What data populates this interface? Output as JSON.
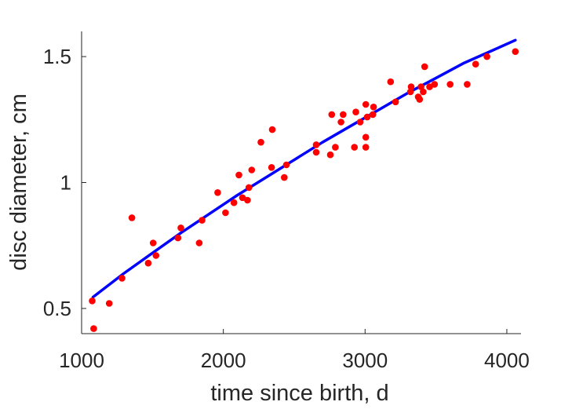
{
  "chart_data": {
    "type": "scatter",
    "xlabel": "time since birth, d",
    "ylabel": "disc diameter, cm",
    "xlim": [
      1000,
      4100
    ],
    "ylim": [
      0.4,
      1.6
    ],
    "xticks": [
      1000,
      2000,
      3000,
      4000
    ],
    "xtick_labels": [
      "1000",
      "2000",
      "3000",
      "4000"
    ],
    "yticks": [
      0.5,
      1,
      1.5
    ],
    "ytick_labels": [
      "0.5",
      "1",
      "1.5"
    ],
    "grid": false,
    "legend": "none",
    "series": [
      {
        "kind": "points",
        "color": "#ff0000",
        "points": [
          [
            1075,
            0.53
          ],
          [
            1085,
            0.42
          ],
          [
            1195,
            0.52
          ],
          [
            1285,
            0.62
          ],
          [
            1355,
            0.86
          ],
          [
            1470,
            0.68
          ],
          [
            1505,
            0.76
          ],
          [
            1525,
            0.71
          ],
          [
            1680,
            0.78
          ],
          [
            1700,
            0.82
          ],
          [
            1830,
            0.76
          ],
          [
            1850,
            0.85
          ],
          [
            1960,
            0.96
          ],
          [
            2015,
            0.88
          ],
          [
            2075,
            0.92
          ],
          [
            2110,
            1.03
          ],
          [
            2135,
            0.94
          ],
          [
            2170,
            0.93
          ],
          [
            2180,
            0.98
          ],
          [
            2200,
            1.05
          ],
          [
            2265,
            1.16
          ],
          [
            2340,
            1.06
          ],
          [
            2345,
            1.21
          ],
          [
            2430,
            1.02
          ],
          [
            2445,
            1.07
          ],
          [
            2655,
            1.12
          ],
          [
            2655,
            1.15
          ],
          [
            2755,
            1.11
          ],
          [
            2765,
            1.27
          ],
          [
            2790,
            1.14
          ],
          [
            2830,
            1.24
          ],
          [
            2845,
            1.27
          ],
          [
            2925,
            1.14
          ],
          [
            2935,
            1.28
          ],
          [
            2965,
            1.24
          ],
          [
            3005,
            1.14
          ],
          [
            3005,
            1.18
          ],
          [
            3005,
            1.31
          ],
          [
            3015,
            1.26
          ],
          [
            3055,
            1.27
          ],
          [
            3060,
            1.3
          ],
          [
            3180,
            1.4
          ],
          [
            3215,
            1.32
          ],
          [
            3320,
            1.36
          ],
          [
            3325,
            1.38
          ],
          [
            3375,
            1.34
          ],
          [
            3385,
            1.33
          ],
          [
            3395,
            1.38
          ],
          [
            3410,
            1.36
          ],
          [
            3420,
            1.46
          ],
          [
            3455,
            1.38
          ],
          [
            3490,
            1.39
          ],
          [
            3600,
            1.39
          ],
          [
            3720,
            1.39
          ],
          [
            3780,
            1.47
          ],
          [
            3860,
            1.5
          ],
          [
            4060,
            1.52
          ]
        ]
      },
      {
        "kind": "line",
        "color": "#0000ff",
        "points": [
          [
            1080,
            0.545
          ],
          [
            1300,
            0.64
          ],
          [
            1500,
            0.72
          ],
          [
            1700,
            0.8
          ],
          [
            1900,
            0.875
          ],
          [
            2100,
            0.95
          ],
          [
            2300,
            1.02
          ],
          [
            2500,
            1.09
          ],
          [
            2700,
            1.16
          ],
          [
            2900,
            1.225
          ],
          [
            3100,
            1.29
          ],
          [
            3300,
            1.355
          ],
          [
            3500,
            1.415
          ],
          [
            3700,
            1.475
          ],
          [
            3900,
            1.525
          ],
          [
            4060,
            1.565
          ]
        ]
      }
    ]
  }
}
